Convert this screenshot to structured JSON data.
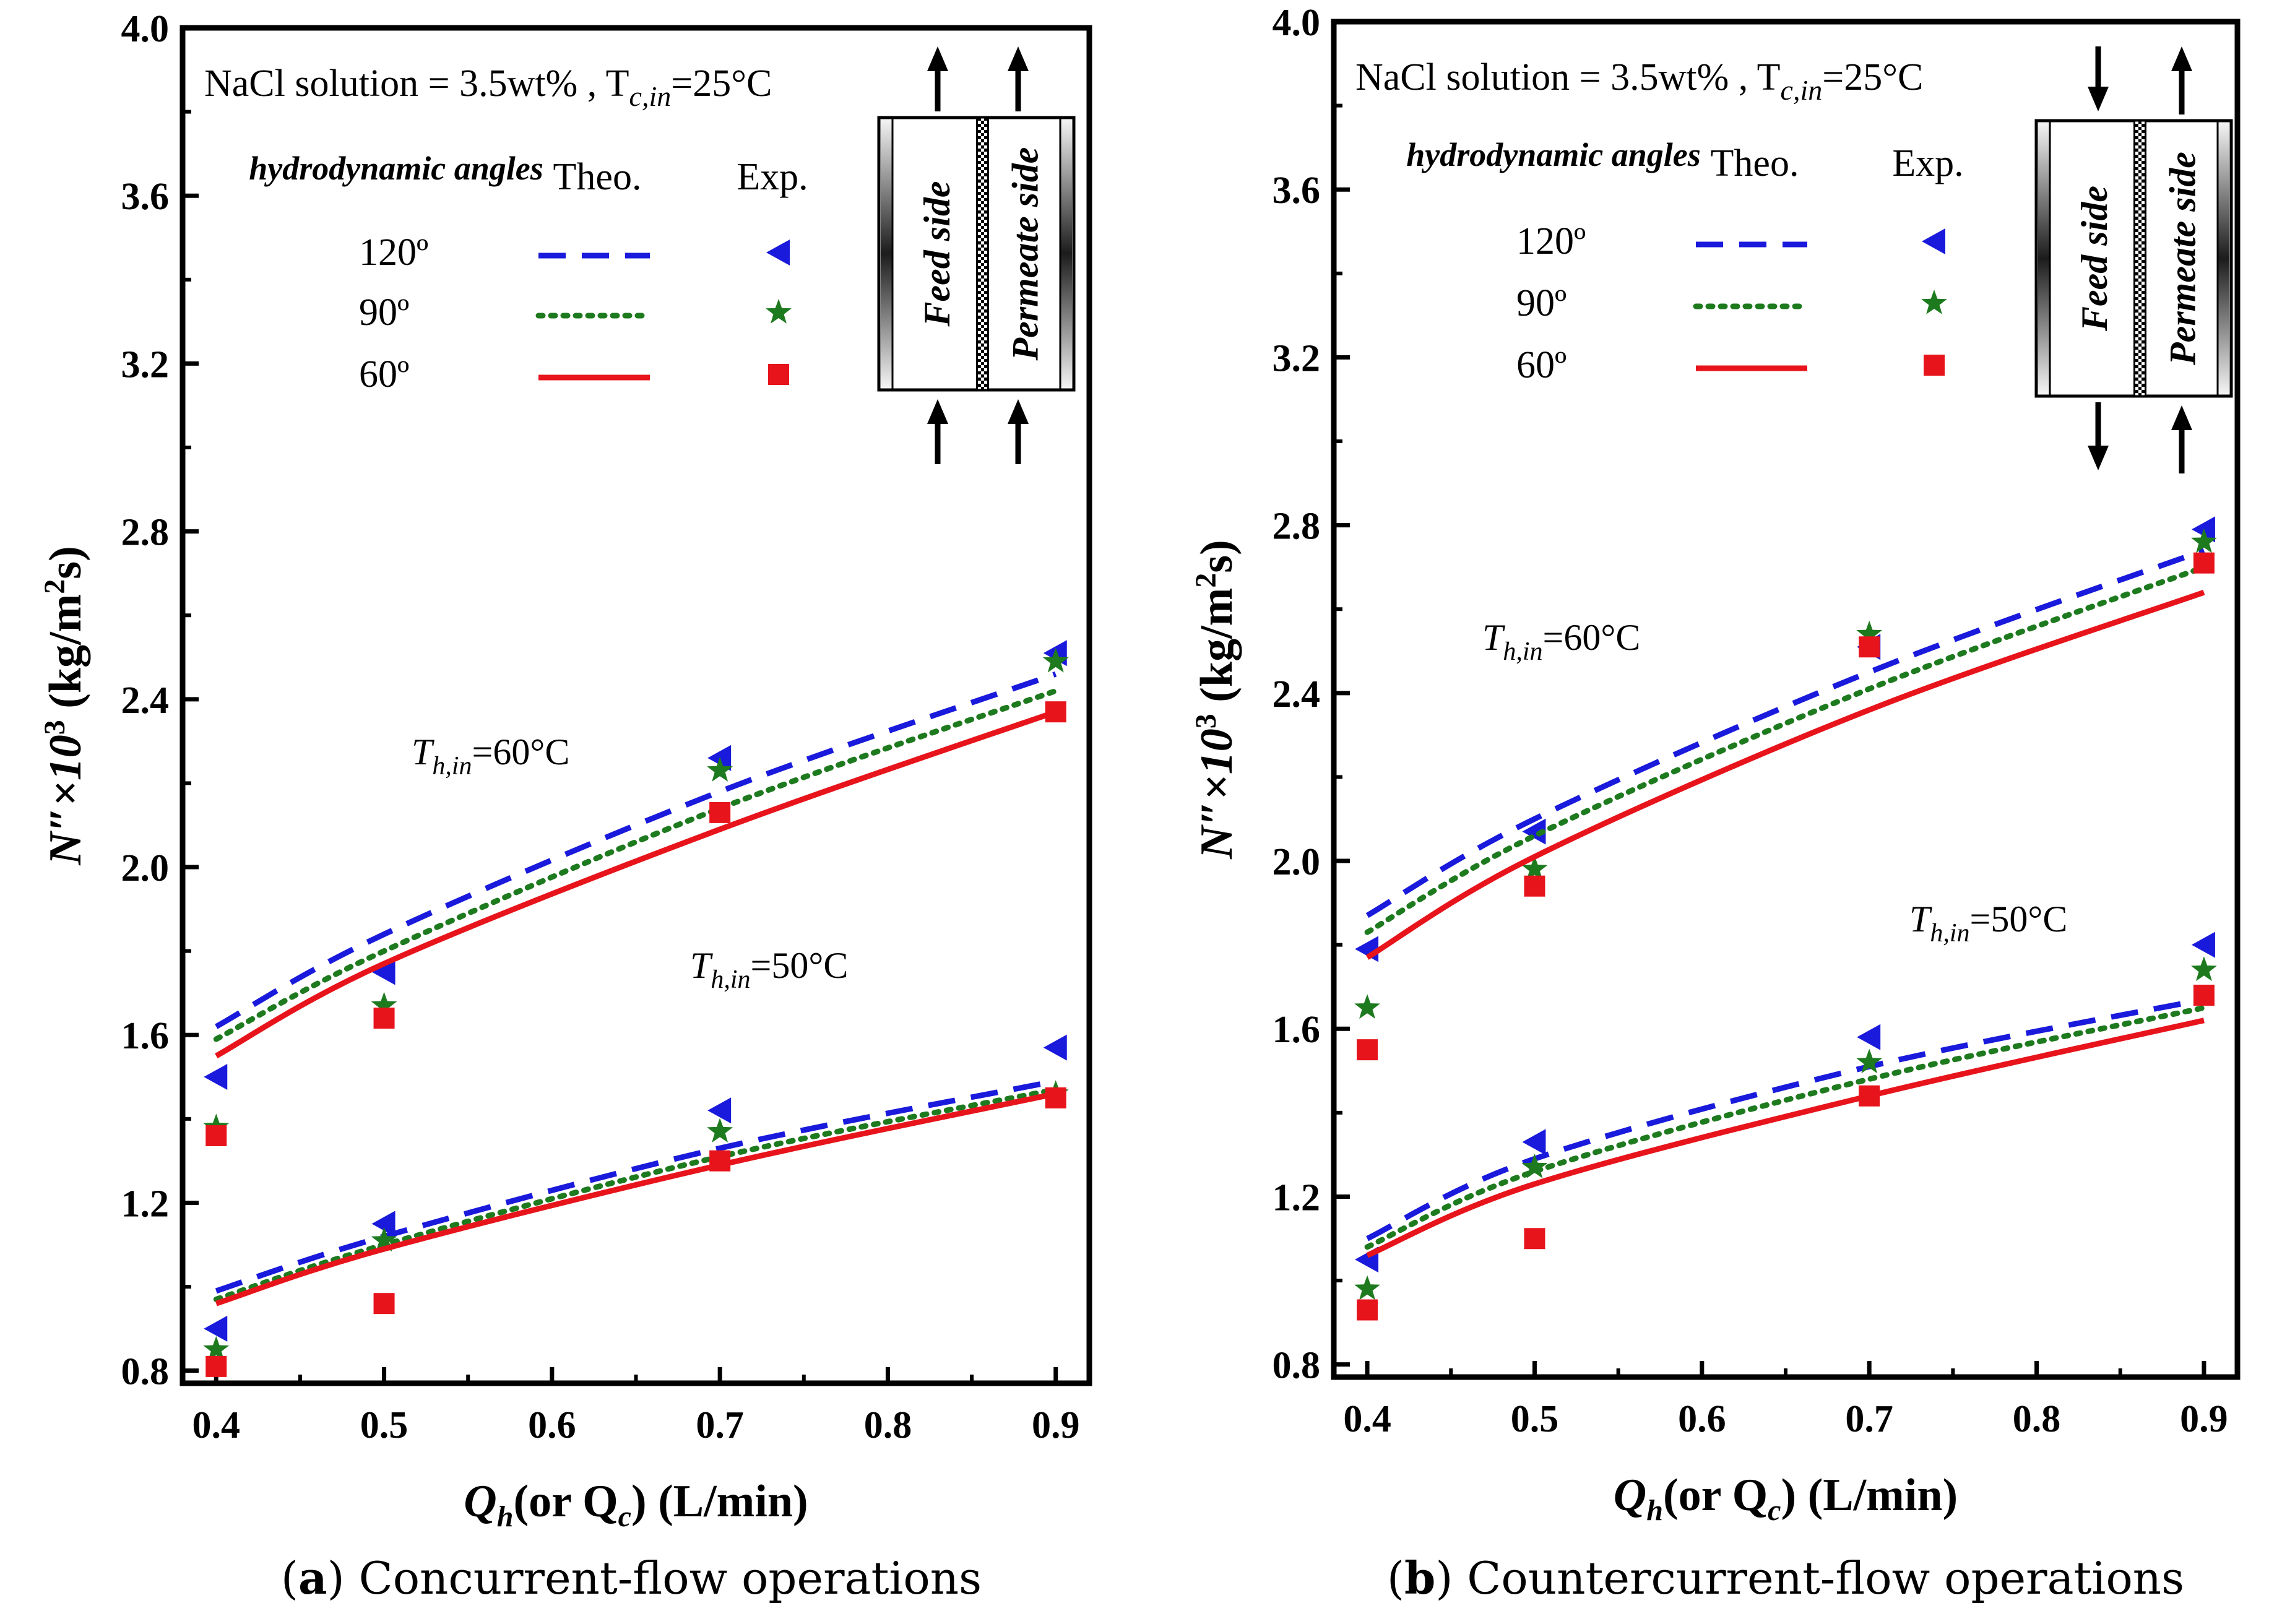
{
  "chart_data": [
    {
      "type": "line",
      "panel_id": "a",
      "caption_letter": "a",
      "caption_text": "Concurrent-flow operations",
      "condition_text": "NaCl solution = 3.5wt% , T",
      "condition_sub": "c,in",
      "condition_end": "=25°C",
      "legend_header": "hydrodynamic angles",
      "legend_theo": "Theo.",
      "legend_exp": "Exp.",
      "angle_labels": [
        "120º",
        "90º",
        "60º"
      ],
      "annotations": [
        {
          "main": "T",
          "sub": "h,in",
          "end": "=60°C"
        },
        {
          "main": "T",
          "sub": "h,in",
          "end": "=50°C"
        }
      ],
      "feed_label": "Feed side",
      "permeate_label": "Permeate side",
      "flow_arrangement": "concurrent",
      "x": [
        0.4,
        0.5,
        0.7,
        0.9
      ],
      "xlim": [
        0.38,
        0.92
      ],
      "ylim": [
        0.77,
        4.0
      ],
      "xticks": [
        "0.4",
        "0.5",
        "0.6",
        "0.7",
        "0.8",
        "0.9"
      ],
      "yticks": [
        "0.8",
        "1.2",
        "1.6",
        "2.0",
        "2.4",
        "2.8",
        "3.2",
        "3.6",
        "4.0"
      ],
      "xlabel_main": "Q",
      "xlabel_sub1": "h",
      "xlabel_mid": "(or Q",
      "xlabel_sub2": "c",
      "xlabel_end": ") (L/min)",
      "ylabel_main": "N″×10",
      "ylabel_sup": "3",
      "ylabel_unit": " (kg/m",
      "ylabel_unit_sup": "2",
      "ylabel_unit_end": "s)",
      "series": [
        {
          "name": "120º T=60",
          "angle": "120º",
          "style": "dash",
          "color": "#1a1adc",
          "theory": [
            [
              0.4,
              1.62
            ],
            [
              0.5,
              1.84
            ],
            [
              0.7,
              2.18
            ],
            [
              0.9,
              2.46
            ]
          ],
          "experiment": [
            1.5,
            1.75,
            2.26,
            2.51
          ]
        },
        {
          "name": "90º T=60",
          "angle": "90º",
          "style": "dot",
          "color": "#1e7a1e",
          "theory": [
            [
              0.4,
              1.59
            ],
            [
              0.5,
              1.8
            ],
            [
              0.7,
              2.14
            ],
            [
              0.9,
              2.42
            ]
          ],
          "experiment": [
            1.38,
            1.67,
            2.23,
            2.49
          ]
        },
        {
          "name": "60º T=60",
          "angle": "60º",
          "style": "solid",
          "color": "#e8141c",
          "theory": [
            [
              0.4,
              1.55
            ],
            [
              0.5,
              1.77
            ],
            [
              0.7,
              2.09
            ],
            [
              0.9,
              2.37
            ]
          ],
          "experiment": [
            1.36,
            1.64,
            2.13,
            2.37
          ]
        },
        {
          "name": "120º T=50",
          "angle": "120º",
          "style": "dash",
          "color": "#1a1adc",
          "theory": [
            [
              0.4,
              0.99
            ],
            [
              0.5,
              1.12
            ],
            [
              0.7,
              1.33
            ],
            [
              0.9,
              1.49
            ]
          ],
          "experiment": [
            0.9,
            1.15,
            1.42,
            1.57
          ]
        },
        {
          "name": "90º T=50",
          "angle": "90º",
          "style": "dot",
          "color": "#1e7a1e",
          "theory": [
            [
              0.4,
              0.97
            ],
            [
              0.5,
              1.1
            ],
            [
              0.7,
              1.31
            ],
            [
              0.9,
              1.47
            ]
          ],
          "experiment": [
            0.85,
            1.11,
            1.37,
            1.46
          ]
        },
        {
          "name": "60º T=50",
          "angle": "60º",
          "style": "solid",
          "color": "#e8141c",
          "theory": [
            [
              0.4,
              0.96
            ],
            [
              0.5,
              1.09
            ],
            [
              0.7,
              1.29
            ],
            [
              0.9,
              1.46
            ]
          ],
          "experiment": [
            0.81,
            0.96,
            1.3,
            1.45
          ]
        }
      ]
    },
    {
      "type": "line",
      "panel_id": "b",
      "caption_letter": "b",
      "caption_text": "Countercurrent-flow operations",
      "condition_text": "NaCl solution = 3.5wt% , T",
      "condition_sub": "c,in",
      "condition_end": "=25°C",
      "legend_header": "hydrodynamic angles",
      "legend_theo": "Theo.",
      "legend_exp": "Exp.",
      "angle_labels": [
        "120º",
        "90º",
        "60º"
      ],
      "annotations": [
        {
          "main": "T",
          "sub": "h,in",
          "end": "=60°C"
        },
        {
          "main": "T",
          "sub": "h,in",
          "end": "=50°C"
        }
      ],
      "feed_label": "Feed side",
      "permeate_label": "Permeate side",
      "flow_arrangement": "countercurrent",
      "x": [
        0.4,
        0.5,
        0.7,
        0.9
      ],
      "xlim": [
        0.38,
        0.92
      ],
      "ylim": [
        0.77,
        4.0
      ],
      "xticks": [
        "0.4",
        "0.5",
        "0.6",
        "0.7",
        "0.8",
        "0.9"
      ],
      "yticks": [
        "0.8",
        "1.2",
        "1.6",
        "2.0",
        "2.4",
        "2.8",
        "3.2",
        "3.6",
        "4.0"
      ],
      "xlabel_main": "Q",
      "xlabel_sub1": "h",
      "xlabel_mid": "(or Q",
      "xlabel_sub2": "c",
      "xlabel_end": ") (L/min)",
      "ylabel_main": "N″×10",
      "ylabel_sup": "3",
      "ylabel_unit": " (kg/m",
      "ylabel_unit_sup": "2",
      "ylabel_unit_end": "s)",
      "series": [
        {
          "name": "120º T=60",
          "angle": "120º",
          "style": "dash",
          "color": "#1a1adc",
          "theory": [
            [
              0.4,
              1.87
            ],
            [
              0.5,
              2.1
            ],
            [
              0.7,
              2.45
            ],
            [
              0.9,
              2.74
            ]
          ],
          "experiment": [
            1.79,
            2.07,
            2.51,
            2.79
          ]
        },
        {
          "name": "90º T=60",
          "angle": "90º",
          "style": "dot",
          "color": "#1e7a1e",
          "theory": [
            [
              0.4,
              1.83
            ],
            [
              0.5,
              2.06
            ],
            [
              0.7,
              2.41
            ],
            [
              0.9,
              2.7
            ]
          ],
          "experiment": [
            1.65,
            1.98,
            2.54,
            2.76
          ]
        },
        {
          "name": "60º T=60",
          "angle": "60º",
          "style": "solid",
          "color": "#e8141c",
          "theory": [
            [
              0.4,
              1.77
            ],
            [
              0.5,
              2.01
            ],
            [
              0.7,
              2.36
            ],
            [
              0.9,
              2.64
            ]
          ],
          "experiment": [
            1.55,
            1.94,
            2.51,
            2.71
          ]
        },
        {
          "name": "120º T=50",
          "angle": "120º",
          "style": "dash",
          "color": "#1a1adc",
          "theory": [
            [
              0.4,
              1.1
            ],
            [
              0.5,
              1.29
            ],
            [
              0.7,
              1.51
            ],
            [
              0.9,
              1.67
            ]
          ],
          "experiment": [
            1.05,
            1.33,
            1.58,
            1.8
          ]
        },
        {
          "name": "90º T=50",
          "angle": "90º",
          "style": "dot",
          "color": "#1e7a1e",
          "theory": [
            [
              0.4,
              1.08
            ],
            [
              0.5,
              1.26
            ],
            [
              0.7,
              1.48
            ],
            [
              0.9,
              1.65
            ]
          ],
          "experiment": [
            0.98,
            1.27,
            1.52,
            1.74
          ]
        },
        {
          "name": "60º T=50",
          "angle": "60º",
          "style": "solid",
          "color": "#e8141c",
          "theory": [
            [
              0.4,
              1.06
            ],
            [
              0.5,
              1.23
            ],
            [
              0.7,
              1.44
            ],
            [
              0.9,
              1.62
            ]
          ],
          "experiment": [
            0.93,
            1.1,
            1.44,
            1.68
          ]
        }
      ]
    }
  ]
}
